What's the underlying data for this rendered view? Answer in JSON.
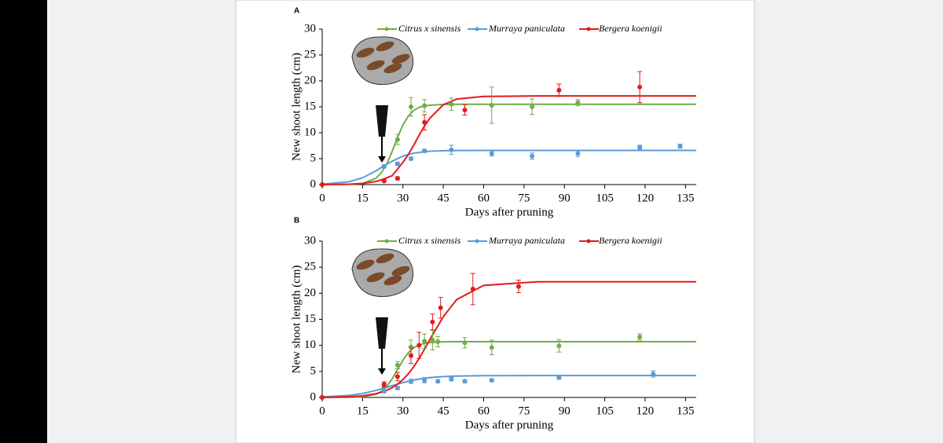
{
  "chart_data": [
    {
      "type": "scatter",
      "panel_label": "A",
      "xlabel": "Days after pruning",
      "ylabel": "New shoot length (cm)",
      "xlim": [
        0,
        139
      ],
      "ylim": [
        0,
        30
      ],
      "xticks": [
        0,
        15,
        30,
        45,
        60,
        75,
        90,
        105,
        120,
        135
      ],
      "yticks": [
        0,
        5,
        10,
        15,
        20,
        25,
        30
      ],
      "fit_x": [
        0,
        10,
        15,
        20,
        22,
        24,
        26,
        28,
        30,
        32,
        34,
        36,
        38,
        40,
        45,
        50,
        60,
        80,
        100,
        139
      ],
      "series": [
        {
          "name": "Citrus x sinensis",
          "color": "#70ad47",
          "x": [
            0,
            28,
            33,
            38,
            48,
            63,
            78,
            95
          ],
          "values": [
            0,
            8.7,
            15,
            15.2,
            15.5,
            15.3,
            15,
            15.8
          ],
          "errors": [
            0,
            1,
            1.8,
            1.2,
            1.2,
            3.5,
            1.5,
            0.6
          ],
          "fit": [
            0,
            0.04,
            0.23,
            1.22,
            2.3,
            4.0,
            6.4,
            9.1,
            11.5,
            13.2,
            14.3,
            14.9,
            15.2,
            15.3,
            15.45,
            15.5,
            15.5,
            15.5,
            15.5,
            15.5
          ]
        },
        {
          "name": "Murraya paniculata",
          "color": "#5b9bd5",
          "x": [
            0,
            23,
            28,
            33,
            38,
            48,
            63,
            78,
            95,
            118,
            133
          ],
          "values": [
            0,
            3.5,
            4,
            5,
            6.5,
            6.7,
            6,
            5.5,
            6,
            7.2,
            7.4
          ],
          "errors": [
            0,
            0.3,
            0.3,
            0.3,
            0.3,
            0.9,
            0.5,
            0.6,
            0.6,
            0.4,
            0.4
          ],
          "fit": [
            0.08,
            0.55,
            1.31,
            2.65,
            3.3,
            3.9,
            4.5,
            5.0,
            5.5,
            5.8,
            6.05,
            6.2,
            6.35,
            6.43,
            6.53,
            6.58,
            6.6,
            6.6,
            6.6,
            6.6
          ]
        },
        {
          "name": "Bergera koenigii",
          "color": "#e31a1c",
          "x": [
            0,
            23,
            28,
            38,
            53,
            88,
            118
          ],
          "values": [
            0,
            0.7,
            1.2,
            12,
            14.4,
            18.2,
            18.8
          ],
          "errors": [
            0,
            0.2,
            0.3,
            1.5,
            1,
            1.2,
            3
          ],
          "fit": [
            0,
            0.07,
            0.21,
            0.61,
            0.92,
            1.3,
            1.71,
            3.0,
            4.3,
            5.8,
            7.6,
            9.5,
            11.3,
            12.8,
            15.4,
            16.5,
            17.0,
            17.1,
            17.1,
            17.1
          ]
        }
      ]
    },
    {
      "type": "scatter",
      "panel_label": "B",
      "xlabel": "Days after pruning",
      "ylabel": "New shoot length (cm)",
      "xlim": [
        0,
        139
      ],
      "ylim": [
        0,
        30
      ],
      "xticks": [
        0,
        15,
        30,
        45,
        60,
        75,
        90,
        105,
        120,
        135
      ],
      "yticks": [
        0,
        5,
        10,
        15,
        20,
        25,
        30
      ],
      "fit_x": [
        0,
        10,
        15,
        20,
        22,
        24,
        26,
        28,
        30,
        32,
        34,
        36,
        38,
        40,
        45,
        50,
        60,
        80,
        100,
        139
      ],
      "series": [
        {
          "name": "Citrus x sinensis",
          "color": "#70ad47",
          "x": [
            0,
            23,
            28,
            33,
            38,
            41,
            43,
            53,
            63,
            88,
            118
          ],
          "values": [
            0,
            2.3,
            6.2,
            9.7,
            10.8,
            11,
            10.7,
            10.5,
            9.6,
            9.9,
            11.6
          ],
          "errors": [
            0,
            0.4,
            0.7,
            1.3,
            1.4,
            1.9,
            1,
            1,
            1.4,
            1.2,
            0.6
          ],
          "fit": [
            0,
            0.02,
            0.11,
            0.61,
            1.16,
            2.12,
            3.55,
            5.35,
            7.15,
            8.58,
            9.54,
            10.08,
            10.39,
            10.54,
            10.67,
            10.7,
            10.7,
            10.7,
            10.7,
            10.7
          ]
        },
        {
          "name": "Murraya paniculata",
          "color": "#5b9bd5",
          "x": [
            0,
            23,
            28,
            33,
            38,
            43,
            48,
            53,
            63,
            88,
            123
          ],
          "values": [
            0,
            1.2,
            1.8,
            3.1,
            3.3,
            3.1,
            3.5,
            3.1,
            3.3,
            3.8,
            4.5
          ],
          "errors": [
            0,
            0.3,
            0.3,
            0.4,
            0.5,
            0.3,
            0.3,
            0.3,
            0.3,
            0.3,
            0.6
          ],
          "fit": [
            0.1,
            0.4,
            0.76,
            1.35,
            1.64,
            1.94,
            2.26,
            2.56,
            2.85,
            3.11,
            3.33,
            3.52,
            3.68,
            3.8,
            4.0,
            4.1,
            4.18,
            4.2,
            4.2,
            4.2
          ]
        },
        {
          "name": "Bergera koenigii",
          "color": "#e31a1c",
          "x": [
            0,
            23,
            28,
            33,
            36,
            41,
            44,
            56,
            73
          ],
          "values": [
            0,
            2.5,
            4,
            8,
            10,
            14.5,
            17.2,
            20.8,
            21.3
          ],
          "errors": [
            0,
            0.5,
            0.8,
            1.5,
            2.5,
            1.5,
            2,
            3,
            1.2
          ],
          "fit": [
            0.02,
            0.13,
            0.31,
            0.72,
            1.0,
            1.37,
            1.88,
            2.55,
            3.43,
            4.53,
            5.89,
            7.47,
            9.24,
            11.1,
            15.5,
            18.8,
            21.5,
            22.2,
            22.2,
            22.2
          ]
        }
      ]
    }
  ]
}
